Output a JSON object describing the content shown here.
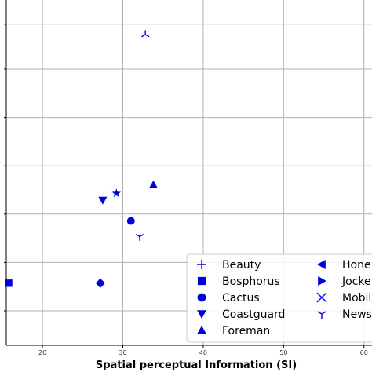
{
  "chart_data": {
    "type": "scatter",
    "xlabel": "Spatial perceptual Information (SI)",
    "ylabel": "",
    "title": "",
    "xlim": [
      15.5,
      61
    ],
    "ylim": [
      0,
      1
    ],
    "x_ticks": [
      20,
      30,
      40,
      50,
      60
    ],
    "y_gridlines": [
      0.1,
      0.24,
      0.38,
      0.52,
      0.66,
      0.8,
      0.93
    ],
    "grid": true,
    "color": "#0000dd",
    "legend_position": "lower-right",
    "series": [
      {
        "name": "Beauty",
        "marker": "plus",
        "points": []
      },
      {
        "name": "Bosphorus",
        "marker": "square",
        "points": [
          [
            15.8,
            0.18
          ]
        ]
      },
      {
        "name": "Cactus",
        "marker": "circle",
        "points": [
          [
            31.0,
            0.36
          ]
        ]
      },
      {
        "name": "Coastguard",
        "marker": "triangle-down",
        "points": [
          [
            27.5,
            0.42
          ]
        ]
      },
      {
        "name": "Foreman",
        "marker": "triangle-up",
        "points": [
          [
            33.8,
            0.465
          ]
        ]
      },
      {
        "name": "Honey",
        "marker": "triangle-left",
        "points": []
      },
      {
        "name": "Jockey",
        "marker": "triangle-right",
        "points": []
      },
      {
        "name": "Mobile",
        "marker": "x",
        "points": []
      },
      {
        "name": "News",
        "marker": "tri-down",
        "points": [
          [
            32.1,
            0.315
          ]
        ]
      },
      {
        "name": "",
        "marker": "star",
        "points": [
          [
            29.2,
            0.44
          ]
        ]
      },
      {
        "name": "",
        "marker": "diamond",
        "points": [
          [
            27.2,
            0.18
          ]
        ]
      },
      {
        "name": "",
        "marker": "tri-up",
        "points": [
          [
            32.8,
            0.9
          ]
        ]
      }
    ],
    "legend_labels": [
      "Beauty",
      "Bosphorus",
      "Cactus",
      "Coastguard",
      "Foreman",
      "Hone",
      "Jocke",
      "Mobil",
      "News"
    ]
  }
}
